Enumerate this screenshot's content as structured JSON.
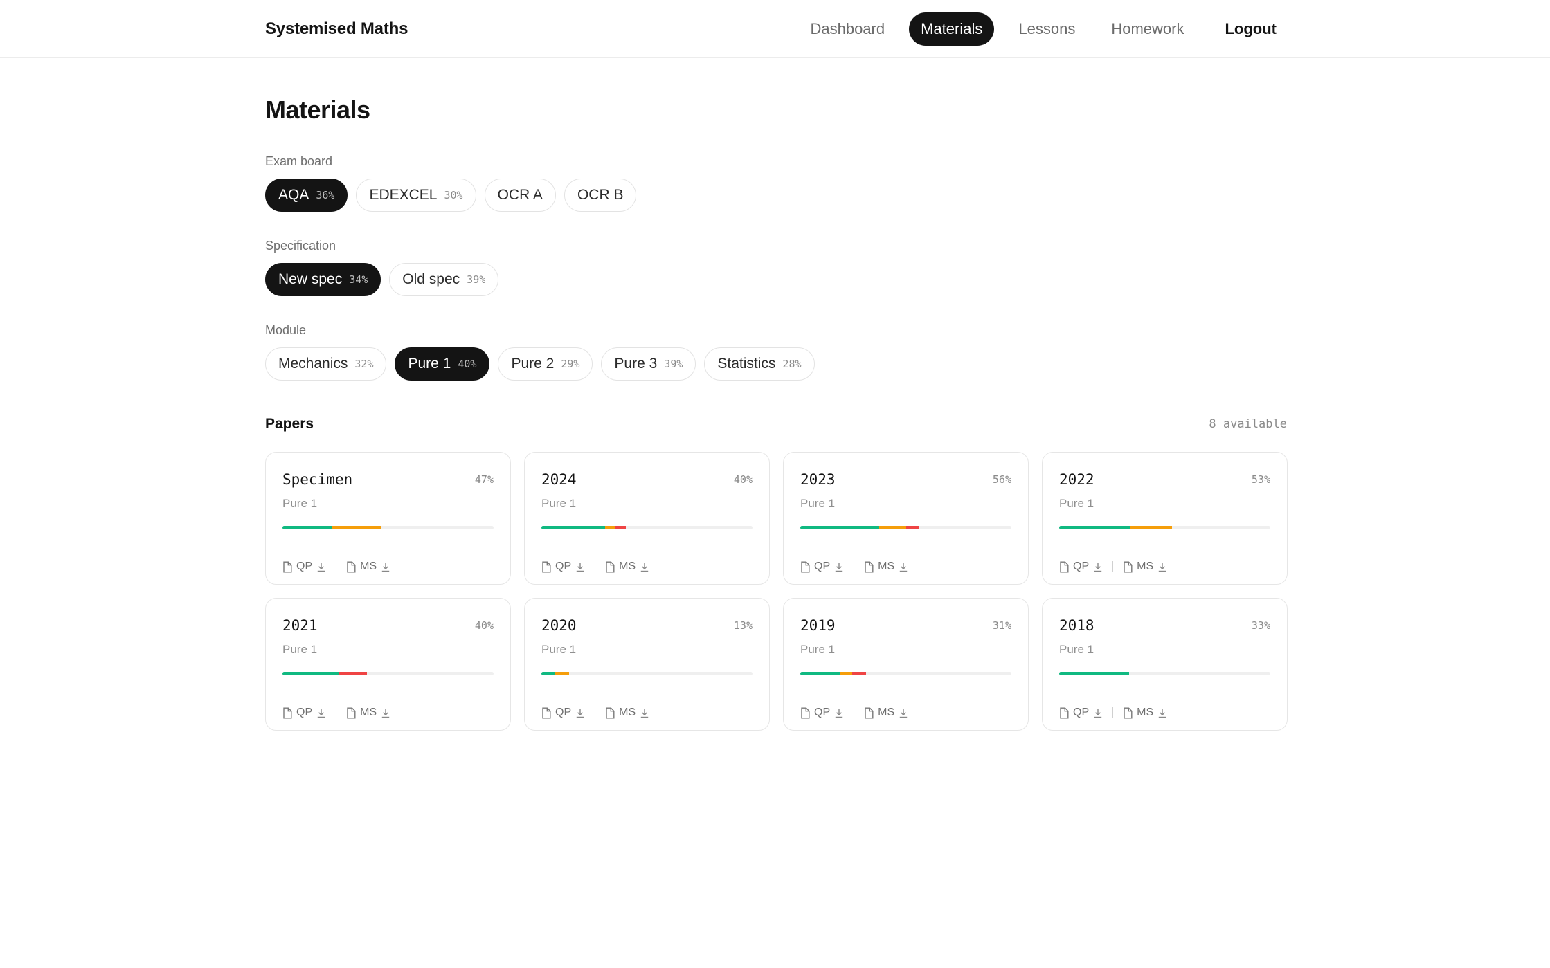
{
  "brand": "Systemised Maths",
  "nav": {
    "items": [
      {
        "label": "Dashboard",
        "active": false
      },
      {
        "label": "Materials",
        "active": true
      },
      {
        "label": "Lessons",
        "active": false
      },
      {
        "label": "Homework",
        "active": false
      }
    ],
    "logout": "Logout"
  },
  "page_title": "Materials",
  "filters": {
    "exam_board": {
      "label": "Exam board",
      "options": [
        {
          "name": "AQA",
          "pct": "36%",
          "active": true
        },
        {
          "name": "EDEXCEL",
          "pct": "30%",
          "active": false
        },
        {
          "name": "OCR A",
          "pct": "",
          "active": false
        },
        {
          "name": "OCR B",
          "pct": "",
          "active": false
        }
      ]
    },
    "specification": {
      "label": "Specification",
      "options": [
        {
          "name": "New spec",
          "pct": "34%",
          "active": true
        },
        {
          "name": "Old spec",
          "pct": "39%",
          "active": false
        }
      ]
    },
    "module": {
      "label": "Module",
      "options": [
        {
          "name": "Mechanics",
          "pct": "32%",
          "active": false
        },
        {
          "name": "Pure 1",
          "pct": "40%",
          "active": true
        },
        {
          "name": "Pure 2",
          "pct": "29%",
          "active": false
        },
        {
          "name": "Pure 3",
          "pct": "39%",
          "active": false
        },
        {
          "name": "Statistics",
          "pct": "28%",
          "active": false
        }
      ]
    }
  },
  "papers": {
    "title": "Papers",
    "count": "8 available",
    "qp_label": "QP",
    "ms_label": "MS",
    "icons": {
      "file": "file-icon",
      "download": "download-icon"
    },
    "colors": {
      "green": "#10b981",
      "orange": "#f59e0b",
      "red": "#ef4444",
      "track": "#efefef"
    },
    "items": [
      {
        "title": "Specimen",
        "pct": "47%",
        "module": "Pure 1",
        "progress": {
          "green": 23.5,
          "orange": 23.5,
          "red": 0
        }
      },
      {
        "title": "2024",
        "pct": "40%",
        "module": "Pure 1",
        "progress": {
          "green": 30,
          "orange": 5,
          "red": 5
        }
      },
      {
        "title": "2023",
        "pct": "56%",
        "module": "Pure 1",
        "progress": {
          "green": 37.5,
          "orange": 12.5,
          "red": 6
        }
      },
      {
        "title": "2022",
        "pct": "53%",
        "module": "Pure 1",
        "progress": {
          "green": 33.5,
          "orange": 20,
          "red": 0
        }
      },
      {
        "title": "2021",
        "pct": "40%",
        "module": "Pure 1",
        "progress": {
          "green": 26.5,
          "orange": 0,
          "red": 13.5
        }
      },
      {
        "title": "2020",
        "pct": "13%",
        "module": "Pure 1",
        "progress": {
          "green": 6.5,
          "orange": 6.5,
          "red": 0
        }
      },
      {
        "title": "2019",
        "pct": "31%",
        "module": "Pure 1",
        "progress": {
          "green": 19,
          "orange": 5.5,
          "red": 6.5
        }
      },
      {
        "title": "2018",
        "pct": "33%",
        "module": "Pure 1",
        "progress": {
          "green": 33,
          "orange": 0,
          "red": 0
        }
      }
    ]
  }
}
